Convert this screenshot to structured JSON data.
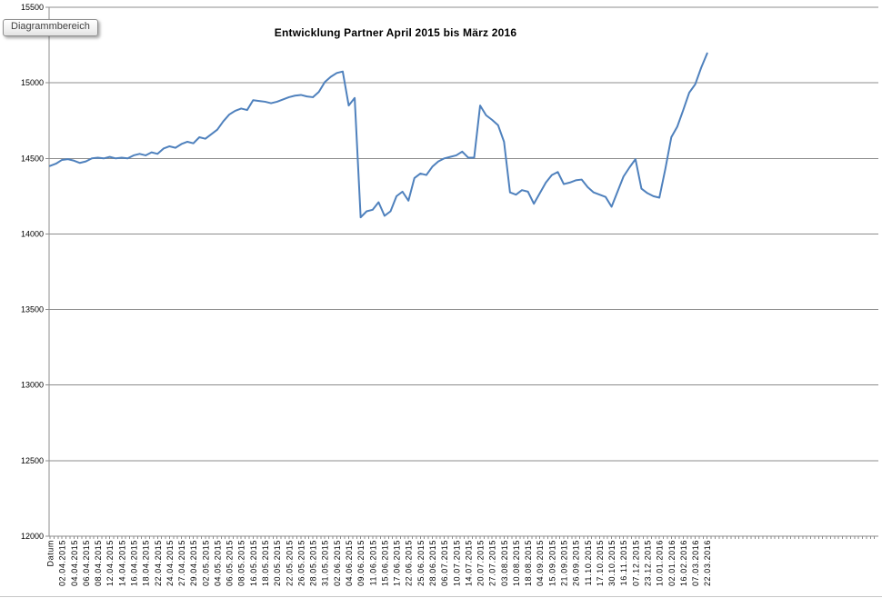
{
  "tooltip": {
    "label": "Diagrammbereich"
  },
  "chart_data": {
    "type": "line",
    "title": "Entwicklung Partner April 2015 bis März 2016",
    "xlabel": "",
    "ylabel": "",
    "ylim": [
      12000,
      15500
    ],
    "y_ticks": [
      15500,
      15000,
      14500,
      14000,
      13500,
      13000,
      12500,
      12000
    ],
    "grid": "horizontal",
    "legend": "none",
    "series_name": "Partner",
    "series_color": "#4F81BD",
    "axis_color": "#8c8c8c",
    "x_labels": [
      "Datum",
      "02.04.2015",
      "04.04.2015",
      "06.04.2015",
      "08.04.2015",
      "12.04.2015",
      "14.04.2015",
      "16.04.2015",
      "18.04.2015",
      "22.04.2015",
      "24.04.2015",
      "27.04.2015",
      "29.04.2015",
      "02.05.2015",
      "04.05.2015",
      "06.05.2015",
      "08.05.2015",
      "16.05.2015",
      "18.05.2015",
      "20.05.2015",
      "22.05.2015",
      "26.05.2015",
      "28.05.2015",
      "31.05.2015",
      "02.06.2015",
      "04.06.2015",
      "09.06.2015",
      "11.06.2015",
      "15.06.2015",
      "17.06.2015",
      "22.06.2015",
      "25.06.2015",
      "28.06.2015",
      "06.07.2015",
      "10.07.2015",
      "14.07.2015",
      "20.07.2015",
      "27.07.2015",
      "03.08.2015",
      "10.08.2015",
      "18.08.2015",
      "04.09.2015",
      "15.09.2015",
      "21.09.2015",
      "26.09.2015",
      "11.10.2015",
      "17.10.2015",
      "30.10.2015",
      "16.11.2015",
      "07.12.2015",
      "23.12.2015",
      "10.01.2016",
      "02.01.2016",
      "16.02.2016",
      "07.03.2016",
      "22.03.2016"
    ],
    "values": [
      14450,
      14465,
      14490,
      14495,
      14485,
      14470,
      14480,
      14500,
      14505,
      14500,
      14510,
      14500,
      14505,
      14500,
      14520,
      14530,
      14520,
      14540,
      14530,
      14565,
      14580,
      14570,
      14595,
      14610,
      14600,
      14640,
      14630,
      14660,
      14690,
      14745,
      14790,
      14815,
      14830,
      14820,
      14885,
      14880,
      14875,
      14865,
      14875,
      14890,
      14905,
      14915,
      14920,
      14910,
      14905,
      14940,
      15005,
      15040,
      15065,
      15075,
      14850,
      14900,
      14110,
      14150,
      14160,
      14210,
      14120,
      14150,
      14250,
      14280,
      14220,
      14370,
      14400,
      14390,
      14445,
      14480,
      14500,
      14510,
      14520,
      14545,
      14505,
      14505,
      14850,
      14785,
      14755,
      14720,
      14610,
      14275,
      14260,
      14290,
      14280,
      14200,
      14270,
      14340,
      14390,
      14410,
      14330,
      14340,
      14355,
      14360,
      14310,
      14275,
      14260,
      14245,
      14180,
      14280,
      14380,
      14440,
      14495,
      14300,
      14270,
      14250,
      14240,
      14430,
      14640,
      14710,
      14820,
      14935,
      14990,
      15100,
      15195
    ]
  }
}
